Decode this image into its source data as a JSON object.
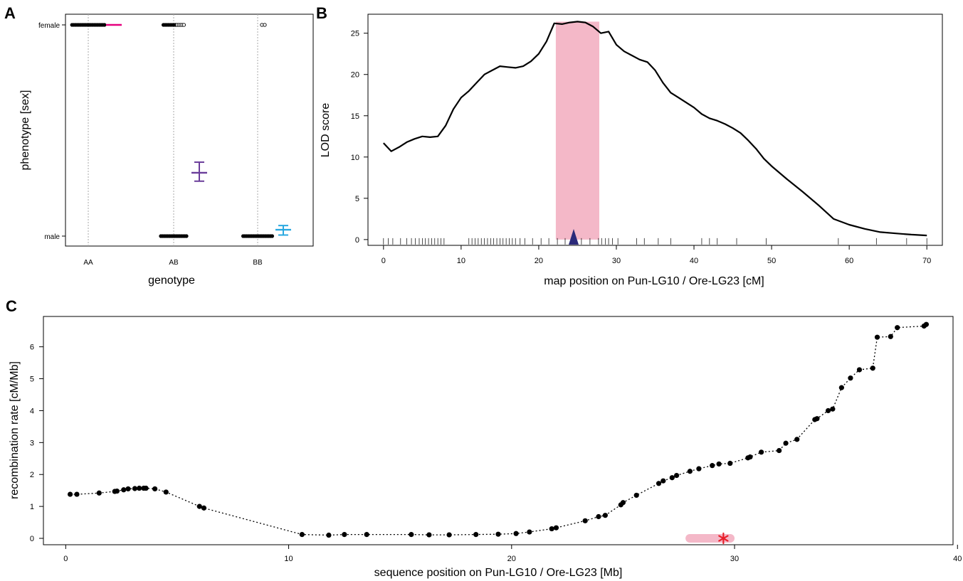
{
  "panels": {
    "a": {
      "letter": "A"
    },
    "b": {
      "letter": "B"
    },
    "c": {
      "letter": "C"
    }
  },
  "colors": {
    "line": "#000000",
    "pink": "#f4b8c8",
    "magenta": "#e6007e",
    "purple": "#6a3d9a",
    "cyan": "#29a8e0",
    "navy": "#2b2a7a",
    "red": "#e8202a",
    "grid": "#aaaaaa"
  },
  "chart_data": [
    {
      "id": "A",
      "type": "scatter",
      "xlabel": "genotype",
      "ylabel": "phenotype [sex]",
      "categories": [
        "AA",
        "AB",
        "BB"
      ],
      "y_levels": [
        "male",
        "female"
      ],
      "points": {
        "AA": {
          "female_filled": 20,
          "female_open": 0,
          "male_filled": 0,
          "male_open": 0
        },
        "AB": {
          "female_filled": 8,
          "female_open": 5,
          "male_filled": 16,
          "male_open": 0
        },
        "BB": {
          "female_filled": 0,
          "female_open": 2,
          "male_filled": 18,
          "male_open": 0
        }
      },
      "means": [
        {
          "genotype": "AA",
          "mean": 1.0,
          "lower": 1.0,
          "upper": 1.0,
          "color": "#e6007e"
        },
        {
          "genotype": "AB",
          "mean": 0.3,
          "lower": 0.26,
          "upper": 0.35,
          "color": "#6a3d9a"
        },
        {
          "genotype": "BB",
          "mean": 0.03,
          "lower": 0.005,
          "upper": 0.05,
          "color": "#29a8e0"
        }
      ]
    },
    {
      "id": "B",
      "type": "line",
      "xlabel": "map position on Pun-LG10 / Ore-LG23 [cM]",
      "ylabel": "LOD score",
      "xlim": [
        -2,
        72
      ],
      "ylim": [
        -0.7,
        27.3
      ],
      "xticks": [
        0,
        10,
        20,
        30,
        40,
        50,
        60,
        70
      ],
      "yticks": [
        0,
        5,
        10,
        15,
        20,
        25
      ],
      "interval": [
        22.2,
        27.8
      ],
      "peak_marker": 24.5,
      "x": [
        0,
        1,
        2,
        3,
        4,
        5,
        6,
        7,
        8,
        9,
        10,
        11,
        12,
        13,
        14,
        15,
        16,
        17,
        18,
        19,
        20,
        21,
        22,
        23,
        24,
        25,
        26,
        27,
        28,
        29,
        30,
        31,
        32,
        33,
        34,
        35,
        36,
        37,
        38,
        39,
        40,
        41,
        42,
        43,
        44,
        45,
        46,
        47,
        48,
        49,
        50,
        52,
        54,
        56,
        58,
        60,
        62,
        64,
        66,
        68,
        70
      ],
      "y": [
        11.7,
        10.7,
        11.2,
        11.8,
        12.2,
        12.5,
        12.4,
        12.5,
        13.8,
        15.8,
        17.2,
        18.0,
        19.0,
        20.0,
        20.5,
        21.0,
        20.9,
        20.8,
        21.0,
        21.6,
        22.5,
        24.0,
        26.2,
        26.1,
        26.3,
        26.4,
        26.3,
        25.8,
        25.0,
        25.2,
        23.6,
        22.8,
        22.3,
        21.8,
        21.5,
        20.5,
        19.0,
        17.8,
        17.2,
        16.6,
        16.0,
        15.2,
        14.7,
        14.4,
        14.0,
        13.5,
        12.9,
        12.0,
        11.0,
        9.8,
        8.9,
        7.3,
        5.8,
        4.2,
        2.5,
        1.8,
        1.3,
        0.9,
        0.75,
        0.6,
        0.5
      ],
      "markers": [
        0,
        0.6,
        1.2,
        2.2,
        3.0,
        3.6,
        4.1,
        4.6,
        5.0,
        5.4,
        5.8,
        6.2,
        6.6,
        7.0,
        7.4,
        7.8,
        11.0,
        11.4,
        11.8,
        12.2,
        12.6,
        13.0,
        13.4,
        13.8,
        14.2,
        14.6,
        15.0,
        15.4,
        15.8,
        16.2,
        16.6,
        17.0,
        17.6,
        18.2,
        19.2,
        20.3,
        21.3,
        22.4,
        23.4,
        24.5,
        25.5,
        26.6,
        27.7,
        28.1,
        28.6,
        29.0,
        29.5,
        30.2,
        32.6,
        33.6,
        35.4,
        37.0,
        41.0,
        42.0,
        43.0,
        45.5,
        49.3,
        58.6,
        63.5,
        67.4,
        70.0
      ]
    },
    {
      "id": "C",
      "type": "scatter",
      "xlabel": "sequence position on Pun-LG10 / Ore-LG23 [Mb]",
      "ylabel": "recombination rate [cM/Mb]",
      "xlim": [
        -1.0,
        39.8
      ],
      "ylim": [
        -0.2,
        6.95
      ],
      "xticks": [
        0,
        10,
        20,
        30,
        40
      ],
      "yticks": [
        0,
        1,
        2,
        3,
        4,
        5,
        6
      ],
      "interval": [
        27.8,
        30.0
      ],
      "star_x": 29.5,
      "x": [
        0.2,
        0.5,
        1.5,
        2.2,
        2.3,
        2.6,
        2.8,
        3.1,
        3.3,
        3.5,
        3.6,
        4.0,
        4.5,
        6.0,
        6.2,
        10.6,
        11.8,
        12.5,
        13.5,
        15.5,
        16.3,
        17.2,
        18.4,
        19.4,
        20.2,
        20.8,
        21.8,
        22.0,
        23.3,
        23.9,
        24.2,
        24.9,
        25.0,
        25.6,
        26.6,
        26.8,
        27.2,
        27.4,
        28.0,
        28.4,
        29.0,
        29.3,
        29.8,
        30.6,
        30.7,
        31.2,
        32.0,
        32.3,
        32.8,
        33.6,
        33.7,
        34.2,
        34.4,
        34.8,
        35.2,
        35.6,
        36.2,
        36.4,
        37.0,
        37.3,
        38.5,
        38.6
      ],
      "y": [
        1.38,
        1.38,
        1.42,
        1.47,
        1.48,
        1.52,
        1.55,
        1.56,
        1.57,
        1.57,
        1.57,
        1.55,
        1.45,
        1.0,
        0.95,
        0.12,
        0.1,
        0.12,
        0.12,
        0.12,
        0.11,
        0.11,
        0.12,
        0.13,
        0.15,
        0.2,
        0.3,
        0.33,
        0.55,
        0.68,
        0.72,
        1.05,
        1.12,
        1.35,
        1.72,
        1.8,
        1.9,
        1.97,
        2.1,
        2.18,
        2.28,
        2.33,
        2.35,
        2.52,
        2.55,
        2.7,
        2.75,
        2.98,
        3.1,
        3.72,
        3.75,
        4.0,
        4.05,
        4.72,
        5.02,
        5.28,
        5.33,
        6.3,
        6.32,
        6.6,
        6.65,
        6.7
      ]
    }
  ]
}
